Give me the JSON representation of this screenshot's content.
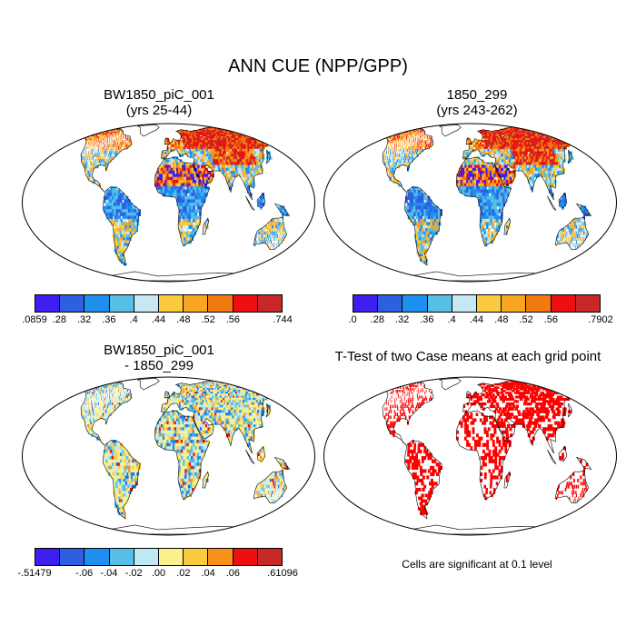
{
  "figure": {
    "title": "ANN CUE (NPP/GPP)",
    "panels": [
      {
        "title_line1": "BW1850_piC_001",
        "title_line2": "(yrs 25-44)"
      },
      {
        "title_line1": "1850_299",
        "title_line2": "(yrs 243-262)"
      },
      {
        "title_line1": "BW1850_piC_001",
        "title_line2": "- 1850_299"
      },
      {
        "title_line1": "T-Test of two Case means at each grid point",
        "title_line2": ""
      }
    ],
    "significance_note": "Cells are significant at 0.1 level"
  },
  "colorbars": {
    "cue1": {
      "labels": [
        ".0859",
        ".28",
        ".32",
        ".36",
        ".4",
        ".44",
        ".48",
        ".52",
        ".56",
        ".744"
      ],
      "colors": [
        "#3d1ff0",
        "#2f5fe0",
        "#1e8ff0",
        "#55bfe8",
        "#c7e7f5",
        "#f8cc3e",
        "#f9a521",
        "#f27a10",
        "#ee1010",
        "#c82828"
      ]
    },
    "cue2": {
      "labels": [
        ".0",
        ".28",
        ".32",
        ".36",
        ".4",
        ".44",
        ".48",
        ".52",
        ".56",
        ".7902"
      ],
      "colors": [
        "#3d1ff0",
        "#2f5fe0",
        "#1e8ff0",
        "#55bfe8",
        "#c7e7f5",
        "#f8cc3e",
        "#f9a521",
        "#f27a10",
        "#ee1010",
        "#c82828"
      ]
    },
    "diff": {
      "labels": [
        "-.51479",
        "-.06",
        "-.04",
        "-.02",
        ".00",
        ".02",
        ".04",
        ".06",
        ".61096"
      ],
      "colors": [
        "#3d1ff0",
        "#2f5fe0",
        "#1e8ff0",
        "#55bfe8",
        "#bfe8f5",
        "#faf08c",
        "#f8cc3e",
        "#f7911c",
        "#ee1010",
        "#c82828"
      ]
    }
  }
}
